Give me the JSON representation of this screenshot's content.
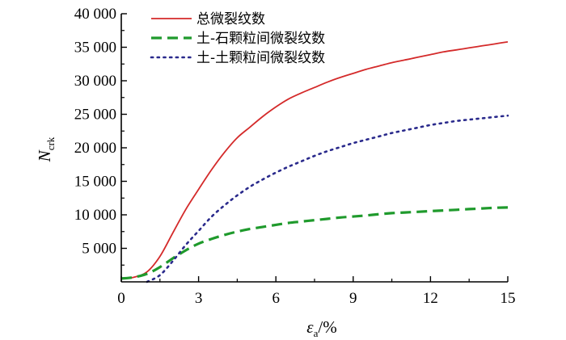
{
  "chart_data": {
    "type": "line",
    "xlabel": {
      "symbol": "ε",
      "sub": "a",
      "unit": "/%"
    },
    "ylabel": {
      "symbol": "N",
      "sub": "crk"
    },
    "xlim": [
      0,
      15
    ],
    "ylim": [
      0,
      40000
    ],
    "x_ticks": [
      0,
      3,
      6,
      9,
      12,
      15
    ],
    "x_tick_labels": [
      "0",
      "3",
      "6",
      "9",
      "12",
      "15"
    ],
    "y_ticks": [
      5000,
      10000,
      15000,
      20000,
      25000,
      30000,
      35000,
      40000
    ],
    "y_tick_labels": [
      "5 000",
      "10 000",
      "15 000",
      "20 000",
      "25 000",
      "30 000",
      "35 000",
      "40 000"
    ],
    "grid": false,
    "legend_position": "top-left",
    "series": [
      {
        "name": "总微裂纹数",
        "color": "#d42a2a",
        "dash": "solid",
        "x": [
          0,
          0.5,
          1.0,
          1.5,
          2.0,
          2.5,
          3.0,
          3.5,
          4.0,
          4.5,
          5.0,
          5.5,
          6.0,
          6.5,
          7.0,
          7.5,
          8.0,
          8.5,
          9.0,
          9.5,
          10.0,
          10.5,
          11.0,
          11.5,
          12.0,
          12.5,
          13.0,
          13.5,
          14.0,
          14.5,
          15.0
        ],
        "y": [
          500,
          700,
          1500,
          3800,
          7300,
          10800,
          13800,
          16700,
          19300,
          21500,
          23100,
          24700,
          26100,
          27300,
          28200,
          29000,
          29800,
          30500,
          31100,
          31700,
          32200,
          32700,
          33100,
          33500,
          33900,
          34300,
          34600,
          34900,
          35200,
          35500,
          35800
        ]
      },
      {
        "name": "土-石颗粒间微裂纹数",
        "color": "#1f9a2c",
        "dash": "long",
        "x": [
          0,
          0.5,
          1.0,
          1.5,
          2.0,
          2.5,
          3.0,
          3.5,
          4.0,
          4.5,
          5.0,
          5.5,
          6.0,
          6.5,
          7.0,
          7.5,
          8.0,
          8.5,
          9.0,
          9.5,
          10.0,
          10.5,
          11.0,
          11.5,
          12.0,
          12.5,
          13.0,
          13.5,
          14.0,
          14.5,
          15.0
        ],
        "y": [
          500,
          700,
          1200,
          2200,
          3500,
          4700,
          5700,
          6400,
          7000,
          7500,
          7900,
          8200,
          8500,
          8800,
          9000,
          9200,
          9400,
          9600,
          9750,
          9900,
          10100,
          10250,
          10350,
          10450,
          10550,
          10650,
          10750,
          10850,
          10950,
          11050,
          11100
        ]
      },
      {
        "name": "土-土颗粒间微裂纹数",
        "color": "#2a2a8c",
        "dash": "dotted",
        "x": [
          1.0,
          1.5,
          2.0,
          2.5,
          3.0,
          3.5,
          4.0,
          4.5,
          5.0,
          5.5,
          6.0,
          6.5,
          7.0,
          7.5,
          8.0,
          8.5,
          9.0,
          9.5,
          10.0,
          10.5,
          11.0,
          11.5,
          12.0,
          12.5,
          13.0,
          13.5,
          14.0,
          14.5,
          15.0
        ],
        "y": [
          0,
          1000,
          3100,
          5500,
          7600,
          9700,
          11400,
          12900,
          14200,
          15300,
          16300,
          17200,
          18000,
          18800,
          19500,
          20100,
          20700,
          21200,
          21700,
          22200,
          22600,
          23000,
          23400,
          23700,
          24000,
          24200,
          24400,
          24600,
          24800
        ]
      }
    ]
  }
}
